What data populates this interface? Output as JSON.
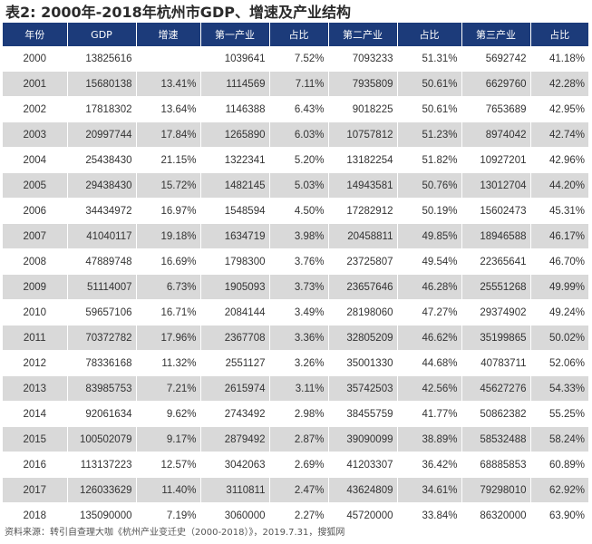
{
  "title": "表2: 2000年-2018年杭州市GDP、增速及产业结构",
  "headers": [
    "年份",
    "GDP",
    "增速",
    "第一产业",
    "占比",
    "第二产业",
    "占比",
    "第三产业",
    "占比"
  ],
  "rows": [
    [
      "2000",
      "13825616",
      "",
      "1039641",
      "7.52%",
      "7093233",
      "51.31%",
      "5692742",
      "41.18%"
    ],
    [
      "2001",
      "15680138",
      "13.41%",
      "1114569",
      "7.11%",
      "7935809",
      "50.61%",
      "6629760",
      "42.28%"
    ],
    [
      "2002",
      "17818302",
      "13.64%",
      "1146388",
      "6.43%",
      "9018225",
      "50.61%",
      "7653689",
      "42.95%"
    ],
    [
      "2003",
      "20997744",
      "17.84%",
      "1265890",
      "6.03%",
      "10757812",
      "51.23%",
      "8974042",
      "42.74%"
    ],
    [
      "2004",
      "25438430",
      "21.15%",
      "1322341",
      "5.20%",
      "13182254",
      "51.82%",
      "10927201",
      "42.96%"
    ],
    [
      "2005",
      "29438430",
      "15.72%",
      "1482145",
      "5.03%",
      "14943581",
      "50.76%",
      "13012704",
      "44.20%"
    ],
    [
      "2006",
      "34434972",
      "16.97%",
      "1548594",
      "4.50%",
      "17282912",
      "50.19%",
      "15602473",
      "45.31%"
    ],
    [
      "2007",
      "41040117",
      "19.18%",
      "1634719",
      "3.98%",
      "20458811",
      "49.85%",
      "18946588",
      "46.17%"
    ],
    [
      "2008",
      "47889748",
      "16.69%",
      "1798300",
      "3.76%",
      "23725807",
      "49.54%",
      "22365641",
      "46.70%"
    ],
    [
      "2009",
      "51114007",
      "6.73%",
      "1905093",
      "3.73%",
      "23657646",
      "46.28%",
      "25551268",
      "49.99%"
    ],
    [
      "2010",
      "59657106",
      "16.71%",
      "2084144",
      "3.49%",
      "28198060",
      "47.27%",
      "29374902",
      "49.24%"
    ],
    [
      "2011",
      "70372782",
      "17.96%",
      "2367708",
      "3.36%",
      "32805209",
      "46.62%",
      "35199865",
      "50.02%"
    ],
    [
      "2012",
      "78336168",
      "11.32%",
      "2551127",
      "3.26%",
      "35001330",
      "44.68%",
      "40783711",
      "52.06%"
    ],
    [
      "2013",
      "83985753",
      "7.21%",
      "2615974",
      "3.11%",
      "35742503",
      "42.56%",
      "45627276",
      "54.33%"
    ],
    [
      "2014",
      "92061634",
      "9.62%",
      "2743492",
      "2.98%",
      "38455759",
      "41.77%",
      "50862382",
      "55.25%"
    ],
    [
      "2015",
      "100502079",
      "9.17%",
      "2879492",
      "2.87%",
      "39090099",
      "38.89%",
      "58532488",
      "58.24%"
    ],
    [
      "2016",
      "113137223",
      "12.57%",
      "3042063",
      "2.69%",
      "41203307",
      "36.42%",
      "68885853",
      "60.89%"
    ],
    [
      "2017",
      "126033629",
      "11.40%",
      "3110811",
      "2.47%",
      "43624809",
      "34.61%",
      "79298010",
      "62.92%"
    ],
    [
      "2018",
      "135090000",
      "7.19%",
      "3060000",
      "2.27%",
      "45720000",
      "33.84%",
      "86320000",
      "63.90%"
    ]
  ],
  "source": "资料来源：转引自查理大咖《杭州产业变迁史（2000-2018）》，2019.7.31，搜狐网",
  "colors": {
    "header_bg": "#1c3b7a",
    "header_text": "#ffffff",
    "row_alt_bg": "#d9d9d9",
    "row_bg": "#ffffff"
  }
}
